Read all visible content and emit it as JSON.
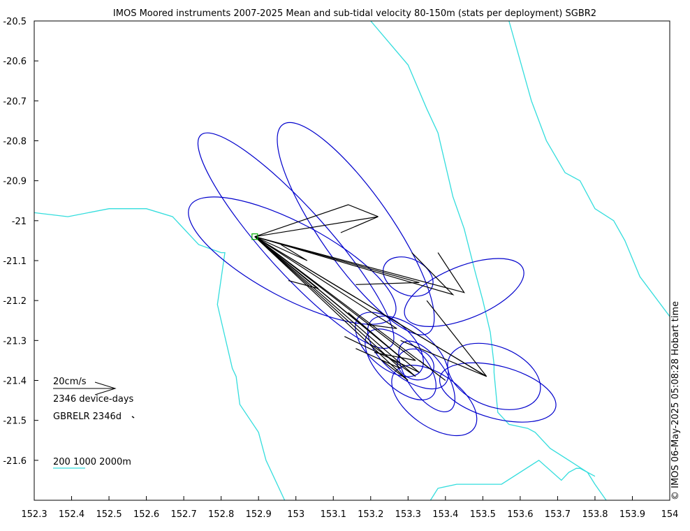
{
  "title": "IMOS Moored instruments 2007-2025 Mean and sub-tidal velocity 80-150m (stats per deployment) SGBR2",
  "footer_timestamp": "© IMOS 06-May-2025 05:08:28 Hobart time",
  "legend": {
    "velocity_scale": "20cm/s",
    "device_days": "2346 device-days",
    "site_label": "GBRELR 2346d",
    "isobaths_label": "200 1000 2000m"
  },
  "colors": {
    "ellipse": "#0000cc",
    "vector": "#000000",
    "isobath": "#33dddd",
    "site_marker": "#00aa00"
  },
  "chart_data": {
    "type": "map",
    "xlim": [
      152.3,
      154
    ],
    "ylim": [
      -21.7,
      -20.5
    ],
    "x_ticks": [
      "152.3",
      "152.4",
      "152.5",
      "152.6",
      "152.7",
      "152.8",
      "152.9",
      "153",
      "153.1",
      "153.2",
      "153.3",
      "153.4",
      "153.5",
      "153.6",
      "153.7",
      "153.8",
      "153.9",
      "154"
    ],
    "y_ticks": [
      "-20.5",
      "-20.6",
      "-20.7",
      "-20.8",
      "-20.9",
      "-21",
      "-21.1",
      "-21.2",
      "-21.3",
      "-21.4",
      "-21.5",
      "-21.6"
    ],
    "site": {
      "name": "GBRELR",
      "lon": 152.89,
      "lat": -21.04
    },
    "isobaths": [
      [
        [
          152.3,
          -20.98
        ],
        [
          152.39,
          -20.99
        ],
        [
          152.5,
          -20.97
        ],
        [
          152.6,
          -20.97
        ],
        [
          152.67,
          -20.99
        ],
        [
          152.72,
          -21.04
        ],
        [
          152.74,
          -21.06
        ],
        [
          152.8,
          -21.08
        ],
        [
          152.81,
          -21.08
        ],
        [
          152.79,
          -21.21
        ],
        [
          152.81,
          -21.29
        ],
        [
          152.83,
          -21.37
        ],
        [
          152.84,
          -21.39
        ],
        [
          152.85,
          -21.46
        ],
        [
          152.9,
          -21.53
        ],
        [
          152.92,
          -21.6
        ],
        [
          152.97,
          -21.7
        ]
      ],
      [
        [
          153.2,
          -20.5
        ],
        [
          153.3,
          -20.61
        ],
        [
          153.35,
          -20.72
        ],
        [
          153.38,
          -20.78
        ],
        [
          153.41,
          -20.9
        ],
        [
          153.42,
          -20.94
        ],
        [
          153.45,
          -21.02
        ],
        [
          153.48,
          -21.13
        ],
        [
          153.5,
          -21.2
        ],
        [
          153.52,
          -21.28
        ],
        [
          153.53,
          -21.36
        ],
        [
          153.53,
          -21.38
        ],
        [
          153.54,
          -21.48
        ],
        [
          153.57,
          -21.51
        ],
        [
          153.62,
          -21.52
        ],
        [
          153.64,
          -21.53
        ],
        [
          153.68,
          -21.57
        ],
        [
          153.73,
          -21.6
        ],
        [
          153.78,
          -21.63
        ],
        [
          153.8,
          -21.64
        ]
      ],
      [
        [
          153.57,
          -20.5
        ],
        [
          153.6,
          -20.6
        ],
        [
          153.63,
          -20.7
        ],
        [
          153.67,
          -20.8
        ],
        [
          153.72,
          -20.88
        ],
        [
          153.76,
          -20.9
        ],
        [
          153.8,
          -20.97
        ],
        [
          153.85,
          -21.0
        ],
        [
          153.88,
          -21.05
        ],
        [
          153.92,
          -21.14
        ],
        [
          154.0,
          -21.24
        ]
      ],
      [
        [
          153.36,
          -21.7
        ],
        [
          153.38,
          -21.67
        ],
        [
          153.43,
          -21.66
        ],
        [
          153.48,
          -21.66
        ],
        [
          153.55,
          -21.66
        ],
        [
          153.65,
          -21.6
        ],
        [
          153.71,
          -21.65
        ],
        [
          153.73,
          -21.63
        ],
        [
          153.75,
          -21.62
        ],
        [
          153.76,
          -21.62
        ],
        [
          153.78,
          -21.63
        ],
        [
          153.8,
          -21.66
        ],
        [
          153.83,
          -21.7
        ]
      ]
    ],
    "ellipses": [
      {
        "lon": 153.0,
        "lat": -21.05,
        "rx_deg": 0.38,
        "ry_deg": 0.085,
        "angle_deg": 48
      },
      {
        "lon": 153.16,
        "lat": -21.02,
        "rx_deg": 0.34,
        "ry_deg": 0.095,
        "angle_deg": 55
      },
      {
        "lon": 152.99,
        "lat": -21.1,
        "rx_deg": 0.31,
        "ry_deg": 0.1,
        "angle_deg": 28
      },
      {
        "lon": 153.3,
        "lat": -21.14,
        "rx_deg": 0.07,
        "ry_deg": 0.048,
        "angle_deg": 25
      },
      {
        "lon": 153.45,
        "lat": -21.18,
        "rx_deg": 0.17,
        "ry_deg": 0.07,
        "angle_deg": -22
      },
      {
        "lon": 153.25,
        "lat": -21.31,
        "rx_deg": 0.11,
        "ry_deg": 0.06,
        "angle_deg": 42
      },
      {
        "lon": 153.28,
        "lat": -21.36,
        "rx_deg": 0.12,
        "ry_deg": 0.06,
        "angle_deg": 45
      },
      {
        "lon": 153.3,
        "lat": -21.33,
        "rx_deg": 0.13,
        "ry_deg": 0.065,
        "angle_deg": 40
      },
      {
        "lon": 153.32,
        "lat": -21.36,
        "rx_deg": 0.05,
        "ry_deg": 0.04,
        "angle_deg": 20
      },
      {
        "lon": 153.35,
        "lat": -21.39,
        "rx_deg": 0.11,
        "ry_deg": 0.05,
        "angle_deg": 55
      },
      {
        "lon": 153.37,
        "lat": -21.45,
        "rx_deg": 0.13,
        "ry_deg": 0.07,
        "angle_deg": 35
      },
      {
        "lon": 153.53,
        "lat": -21.39,
        "rx_deg": 0.13,
        "ry_deg": 0.08,
        "angle_deg": 22
      },
      {
        "lon": 153.54,
        "lat": -21.43,
        "rx_deg": 0.16,
        "ry_deg": 0.07,
        "angle_deg": 15
      }
    ],
    "vectors": [
      [
        [
          152.89,
          -21.04
        ],
        [
          153.22,
          -20.99
        ],
        [
          153.12,
          -21.03
        ]
      ],
      [
        [
          152.89,
          -21.04
        ],
        [
          153.14,
          -20.96
        ],
        [
          153.22,
          -20.99
        ]
      ],
      [
        [
          152.89,
          -21.04
        ],
        [
          153.33,
          -21.155
        ],
        [
          153.16,
          -21.16
        ]
      ],
      [
        [
          152.89,
          -21.04
        ],
        [
          153.45,
          -21.18
        ],
        [
          153.38,
          -21.08
        ]
      ],
      [
        [
          152.89,
          -21.04
        ],
        [
          153.42,
          -21.185
        ],
        [
          153.31,
          -21.08
        ]
      ],
      [
        [
          152.89,
          -21.04
        ],
        [
          153.06,
          -21.17
        ],
        [
          152.98,
          -21.15
        ]
      ],
      [
        [
          152.89,
          -21.04
        ],
        [
          153.03,
          -21.1
        ],
        [
          152.96,
          -21.06
        ]
      ],
      [
        [
          152.89,
          -21.04
        ],
        [
          153.27,
          -21.27
        ],
        [
          153.19,
          -21.26
        ]
      ],
      [
        [
          152.89,
          -21.04
        ],
        [
          153.29,
          -21.35
        ],
        [
          153.14,
          -21.23
        ]
      ],
      [
        [
          152.89,
          -21.04
        ],
        [
          153.32,
          -21.39
        ],
        [
          153.2,
          -21.31
        ]
      ],
      [
        [
          152.89,
          -21.04
        ],
        [
          153.3,
          -21.4
        ],
        [
          153.23,
          -21.35
        ]
      ],
      [
        [
          152.89,
          -21.04
        ],
        [
          153.4,
          -21.4
        ],
        [
          153.33,
          -21.35
        ]
      ],
      [
        [
          152.89,
          -21.04
        ],
        [
          153.51,
          -21.39
        ],
        [
          153.28,
          -21.3
        ]
      ],
      [
        [
          152.89,
          -21.04
        ],
        [
          153.51,
          -21.39
        ],
        [
          153.35,
          -21.2
        ]
      ],
      [
        [
          152.89,
          -21.04
        ],
        [
          153.33,
          -21.38
        ],
        [
          153.13,
          -21.29
        ]
      ],
      [
        [
          152.89,
          -21.04
        ],
        [
          153.32,
          -21.35
        ],
        [
          153.21,
          -21.33
        ]
      ],
      [
        [
          152.89,
          -21.04
        ],
        [
          153.28,
          -21.37
        ],
        [
          153.16,
          -21.32
        ]
      ]
    ]
  }
}
